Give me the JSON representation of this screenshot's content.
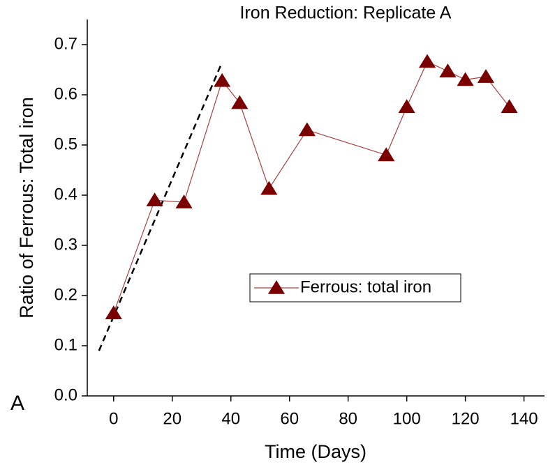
{
  "chart_data": {
    "type": "line",
    "title": "Iron Reduction: Replicate A",
    "panel_label": "A",
    "x_label": "Time (Days)",
    "y_label": "Ratio of Ferrous: Total iron",
    "x": [
      0,
      14,
      24,
      37,
      43,
      53,
      66,
      93,
      100,
      107,
      114,
      120,
      127,
      135
    ],
    "series": [
      {
        "name": "Ferrous: total iron",
        "color": "#7a0000",
        "line_color": "#a84040",
        "marker": "triangle",
        "values": [
          0.165,
          0.39,
          0.386,
          0.628,
          0.584,
          0.413,
          0.53,
          0.48,
          0.576,
          0.666,
          0.647,
          0.63,
          0.636,
          0.576
        ]
      }
    ],
    "trend_line": {
      "x": [
        -5,
        37
      ],
      "values": [
        0.09,
        0.665
      ],
      "color": "#000000",
      "dashed": true
    },
    "xlim": [
      -9,
      147
    ],
    "xticks": [
      0,
      20,
      40,
      60,
      80,
      100,
      120,
      140
    ],
    "ylim": [
      0,
      0.75
    ],
    "yticks": [
      {
        "value": 0,
        "label": "0.0"
      },
      0.1,
      0.2,
      0.3,
      0.4,
      0.5,
      0.6,
      0.7
    ],
    "grid": false,
    "legend": "center-right"
  }
}
